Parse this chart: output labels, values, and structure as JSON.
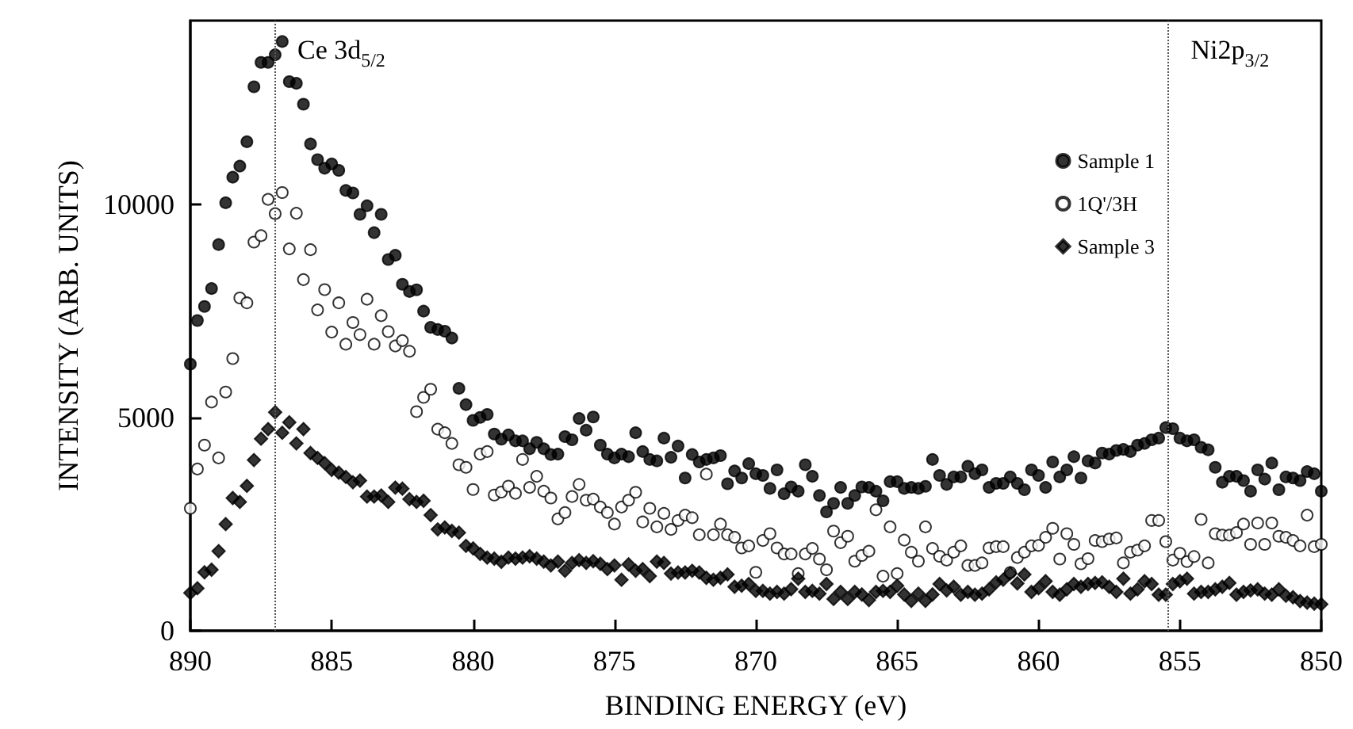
{
  "chart_data": {
    "type": "scatter",
    "xlabel": "BINDING ENERGY (eV)",
    "ylabel": "INTENSITY (ARB. UNITS)",
    "xlim": [
      890,
      850
    ],
    "xticks": [
      890,
      885,
      880,
      875,
      870,
      865,
      860,
      855,
      850
    ],
    "ylim": [
      0,
      14300
    ],
    "yticks": [
      0,
      5000,
      10000
    ],
    "grid": false,
    "legend": "top right",
    "x": [
      890,
      889.75,
      889.5,
      889.25,
      889,
      888.75,
      888.5,
      888.25,
      888,
      887.75,
      887.5,
      887.25,
      887,
      886.75,
      886.5,
      886.25,
      886,
      885.75,
      885.5,
      885.25,
      885,
      884.75,
      884.5,
      884.25,
      884,
      883.75,
      883.5,
      883.25,
      883,
      882.75,
      882.5,
      882.25,
      882,
      881.75,
      881.5,
      881.25,
      881,
      880.75,
      880.5,
      880.25,
      880,
      879.75,
      879.5,
      879.25,
      879,
      878.75,
      878.5,
      878.25,
      878,
      877.75,
      877.5,
      877.25,
      877,
      876.75,
      876.5,
      876.25,
      876,
      875.75,
      875.5,
      875.25,
      875,
      874.75,
      874.5,
      874.25,
      874,
      873.75,
      873.5,
      873.25,
      873,
      872.75,
      872.5,
      872.25,
      872,
      871.75,
      871.5,
      871.25,
      871,
      870.75,
      870.5,
      870.25,
      870,
      869.75,
      869.5,
      869.25,
      869,
      868.75,
      868.5,
      868.25,
      868,
      867.75,
      867.5,
      867.25,
      867,
      866.75,
      866.5,
      866.25,
      866,
      865.75,
      865.5,
      865.25,
      865,
      864.75,
      864.5,
      864.25,
      864,
      863.75,
      863.5,
      863.25,
      863,
      862.75,
      862.5,
      862.25,
      862,
      861.75,
      861.5,
      861.25,
      861,
      860.75,
      860.5,
      860.25,
      860,
      859.75,
      859.5,
      859.25,
      859,
      858.75,
      858.5,
      858.25,
      858,
      857.75,
      857.5,
      857.25,
      857,
      856.75,
      856.5,
      856.25,
      856,
      855.75,
      855.5,
      855.25,
      855,
      854.75,
      854.5,
      854.25,
      854,
      853.75,
      853.5,
      853.25,
      853,
      852.75,
      852.5,
      852.25,
      852,
      851.75,
      851.5,
      851.25,
      851,
      850.75,
      850.5,
      850.25,
      850
    ],
    "series": [
      {
        "name": "Sample 1",
        "color": "#000000",
        "marker": "circle",
        "values": [
          6250,
          7270,
          7600,
          8020,
          9050,
          10030,
          10630,
          10890,
          11460,
          12750,
          13320,
          13320,
          13500,
          13810,
          12870,
          12830,
          12340,
          11410,
          11040,
          10840,
          10940,
          10790,
          10320,
          10260,
          9760,
          9960,
          9330,
          9760,
          8700,
          8800,
          8120,
          7950,
          7990,
          7490,
          7110,
          7060,
          7020,
          6860,
          5680,
          5300,
          4930,
          5000,
          5070,
          4610,
          4490,
          4590,
          4450,
          4450,
          4265,
          4415,
          4265,
          4130,
          4140,
          4550,
          4475,
          4975,
          4700,
          5010,
          4350,
          4140,
          4050,
          4140,
          4080,
          4640,
          4200,
          4015,
          3980,
          4515,
          4065,
          4330,
          3580,
          4130,
          3955,
          4015,
          4050,
          4105,
          3445,
          3745,
          3580,
          3915,
          3680,
          3640,
          3335,
          3770,
          3210,
          3370,
          3270,
          3890,
          3620,
          3170,
          2785,
          2985,
          3360,
          2985,
          3170,
          3370,
          3360,
          3270,
          3045,
          3495,
          3495,
          3335,
          3360,
          3335,
          3385,
          4015,
          3640,
          3430,
          3605,
          3605,
          3855,
          3680,
          3770,
          3360,
          3455,
          3455,
          3605,
          3455,
          3305,
          3770,
          3640,
          3360,
          3955,
          3605,
          3770,
          4080,
          3580,
          3980,
          3930,
          4165,
          4140,
          4225,
          4250,
          4200,
          4350,
          4390,
          4475,
          4515,
          4760,
          4735,
          4515,
          4450,
          4475,
          4300,
          4240,
          3830,
          3480,
          3620,
          3620,
          3520,
          3270,
          3770,
          3555,
          3930,
          3305,
          3605,
          3580,
          3520,
          3730,
          3680,
          3270
        ]
      },
      {
        "name": "1Q'/3H",
        "color": "#ffffff",
        "marker": "circle",
        "values": [
          2870,
          3790,
          4350,
          5360,
          4050,
          5595,
          6380,
          7800,
          7685,
          9110,
          9260,
          10110,
          9775,
          10270,
          8950,
          9785,
          8230,
          8930,
          7520,
          7995,
          7000,
          7685,
          6715,
          7225,
          6940,
          7770,
          6715,
          7385,
          7010,
          6675,
          6800,
          6550,
          5135,
          5470,
          5660,
          4725,
          4640,
          4390,
          3890,
          3830,
          3310,
          4140,
          4200,
          3180,
          3250,
          3390,
          3220,
          4015,
          3360,
          3620,
          3270,
          3110,
          2620,
          2770,
          3145,
          3430,
          3060,
          3085,
          2900,
          2770,
          2500,
          2900,
          3060,
          3245,
          2550,
          2870,
          2435,
          2750,
          2375,
          2585,
          2710,
          2650,
          2250,
          3670,
          2250,
          2500,
          2250,
          2190,
          1940,
          1990,
          1370,
          2115,
          2275,
          1940,
          1800,
          1800,
          1340,
          1800,
          1930,
          1680,
          1430,
          2335,
          2065,
          2215,
          1630,
          1765,
          1865,
          2835,
          1280,
          2435,
          1340,
          2125,
          1840,
          1630,
          2435,
          1930,
          1745,
          1655,
          1840,
          1990,
          1530,
          1530,
          1590,
          1940,
          1970,
          1970,
          1365,
          1715,
          1840,
          1990,
          2000,
          2190,
          2400,
          1680,
          2275,
          2025,
          1570,
          1690,
          2115,
          2090,
          2150,
          2175,
          1590,
          1840,
          1890,
          1990,
          2585,
          2585,
          2090,
          1655,
          1815,
          1620,
          1740,
          2610,
          1590,
          2275,
          2240,
          2240,
          2300,
          2500,
          2025,
          2525,
          2025,
          2525,
          2215,
          2190,
          2115,
          1990,
          2710,
          1970,
          2025
        ]
      },
      {
        "name": "Sample 3",
        "color": "#000000",
        "marker": "diamond",
        "values": [
          885,
          995,
          1370,
          1430,
          1865,
          2500,
          3110,
          3020,
          3395,
          4000,
          4500,
          4725,
          5120,
          4640,
          4885,
          4390,
          4725,
          4165,
          4050,
          3930,
          3770,
          3705,
          3605,
          3480,
          3520,
          3145,
          3145,
          3170,
          3020,
          3355,
          3330,
          3085,
          3020,
          3045,
          2710,
          2375,
          2420,
          2340,
          2300,
          1990,
          1930,
          1800,
          1715,
          1690,
          1615,
          1715,
          1690,
          1715,
          1745,
          1690,
          1620,
          1530,
          1620,
          1405,
          1590,
          1655,
          1590,
          1630,
          1570,
          1445,
          1530,
          1195,
          1555,
          1405,
          1445,
          1280,
          1620,
          1590,
          1340,
          1365,
          1365,
          1405,
          1365,
          1240,
          1195,
          1240,
          1320,
          1030,
          1055,
          1095,
          935,
          935,
          870,
          910,
          870,
          975,
          1220,
          910,
          935,
          870,
          1095,
          745,
          910,
          745,
          910,
          850,
          720,
          910,
          935,
          910,
          1055,
          850,
          700,
          870,
          700,
          850,
          1095,
          945,
          1030,
          845,
          910,
          845,
          870,
          970,
          1135,
          1195,
          1345,
          1110,
          1320,
          910,
          995,
          1160,
          910,
          845,
          970,
          1095,
          1030,
          1095,
          1120,
          1135,
          1030,
          910,
          1220,
          870,
          970,
          1160,
          1095,
          845,
          845,
          1095,
          1160,
          1220,
          870,
          910,
          910,
          970,
          1030,
          1120,
          845,
          910,
          945,
          970,
          870,
          845,
          970,
          820,
          785,
          695,
          660,
          635,
          620
        ]
      }
    ],
    "ref_lines": [
      {
        "axis": "x",
        "value": 887,
        "label": "Ce 3d$_{5/2}$",
        "line_style": "dotted",
        "color": "#555555"
      },
      {
        "axis": "x",
        "value": 855.4,
        "label": "Ni2p$_{3/2}$",
        "line_style": "dotted",
        "color": "#555555"
      }
    ]
  }
}
